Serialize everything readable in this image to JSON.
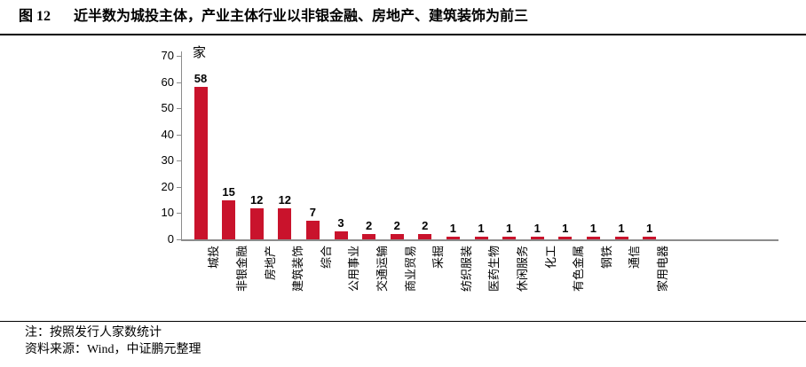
{
  "figure": {
    "label": "图 12",
    "title": "近半数为城投主体，产业主体行业以非银金融、房地产、建筑装饰为前三"
  },
  "chart_data": {
    "type": "bar",
    "title": "",
    "unit_label": "家",
    "categories": [
      "城投",
      "非银金融",
      "房地产",
      "建筑装饰",
      "综合",
      "公用事业",
      "交通运输",
      "商业贸易",
      "采掘",
      "纺织服装",
      "医药生物",
      "休闲服务",
      "化工",
      "有色金属",
      "钢铁",
      "通信",
      "家用电器"
    ],
    "values": [
      58,
      15,
      12,
      12,
      7,
      3,
      2,
      2,
      2,
      1,
      1,
      1,
      1,
      1,
      1,
      1,
      1
    ],
    "xlabel": "",
    "ylabel": "",
    "ylim": [
      0,
      70
    ],
    "ytick_step": 10,
    "grid": false,
    "legend": "none",
    "value_labels_shown": true,
    "bar_color": "#C9132C",
    "axis_color": "#8C8C8C",
    "text_color": "#000000"
  },
  "footer": {
    "note": "注：按照发行人家数统计",
    "source": "资料来源：Wind，中证鹏元整理"
  }
}
